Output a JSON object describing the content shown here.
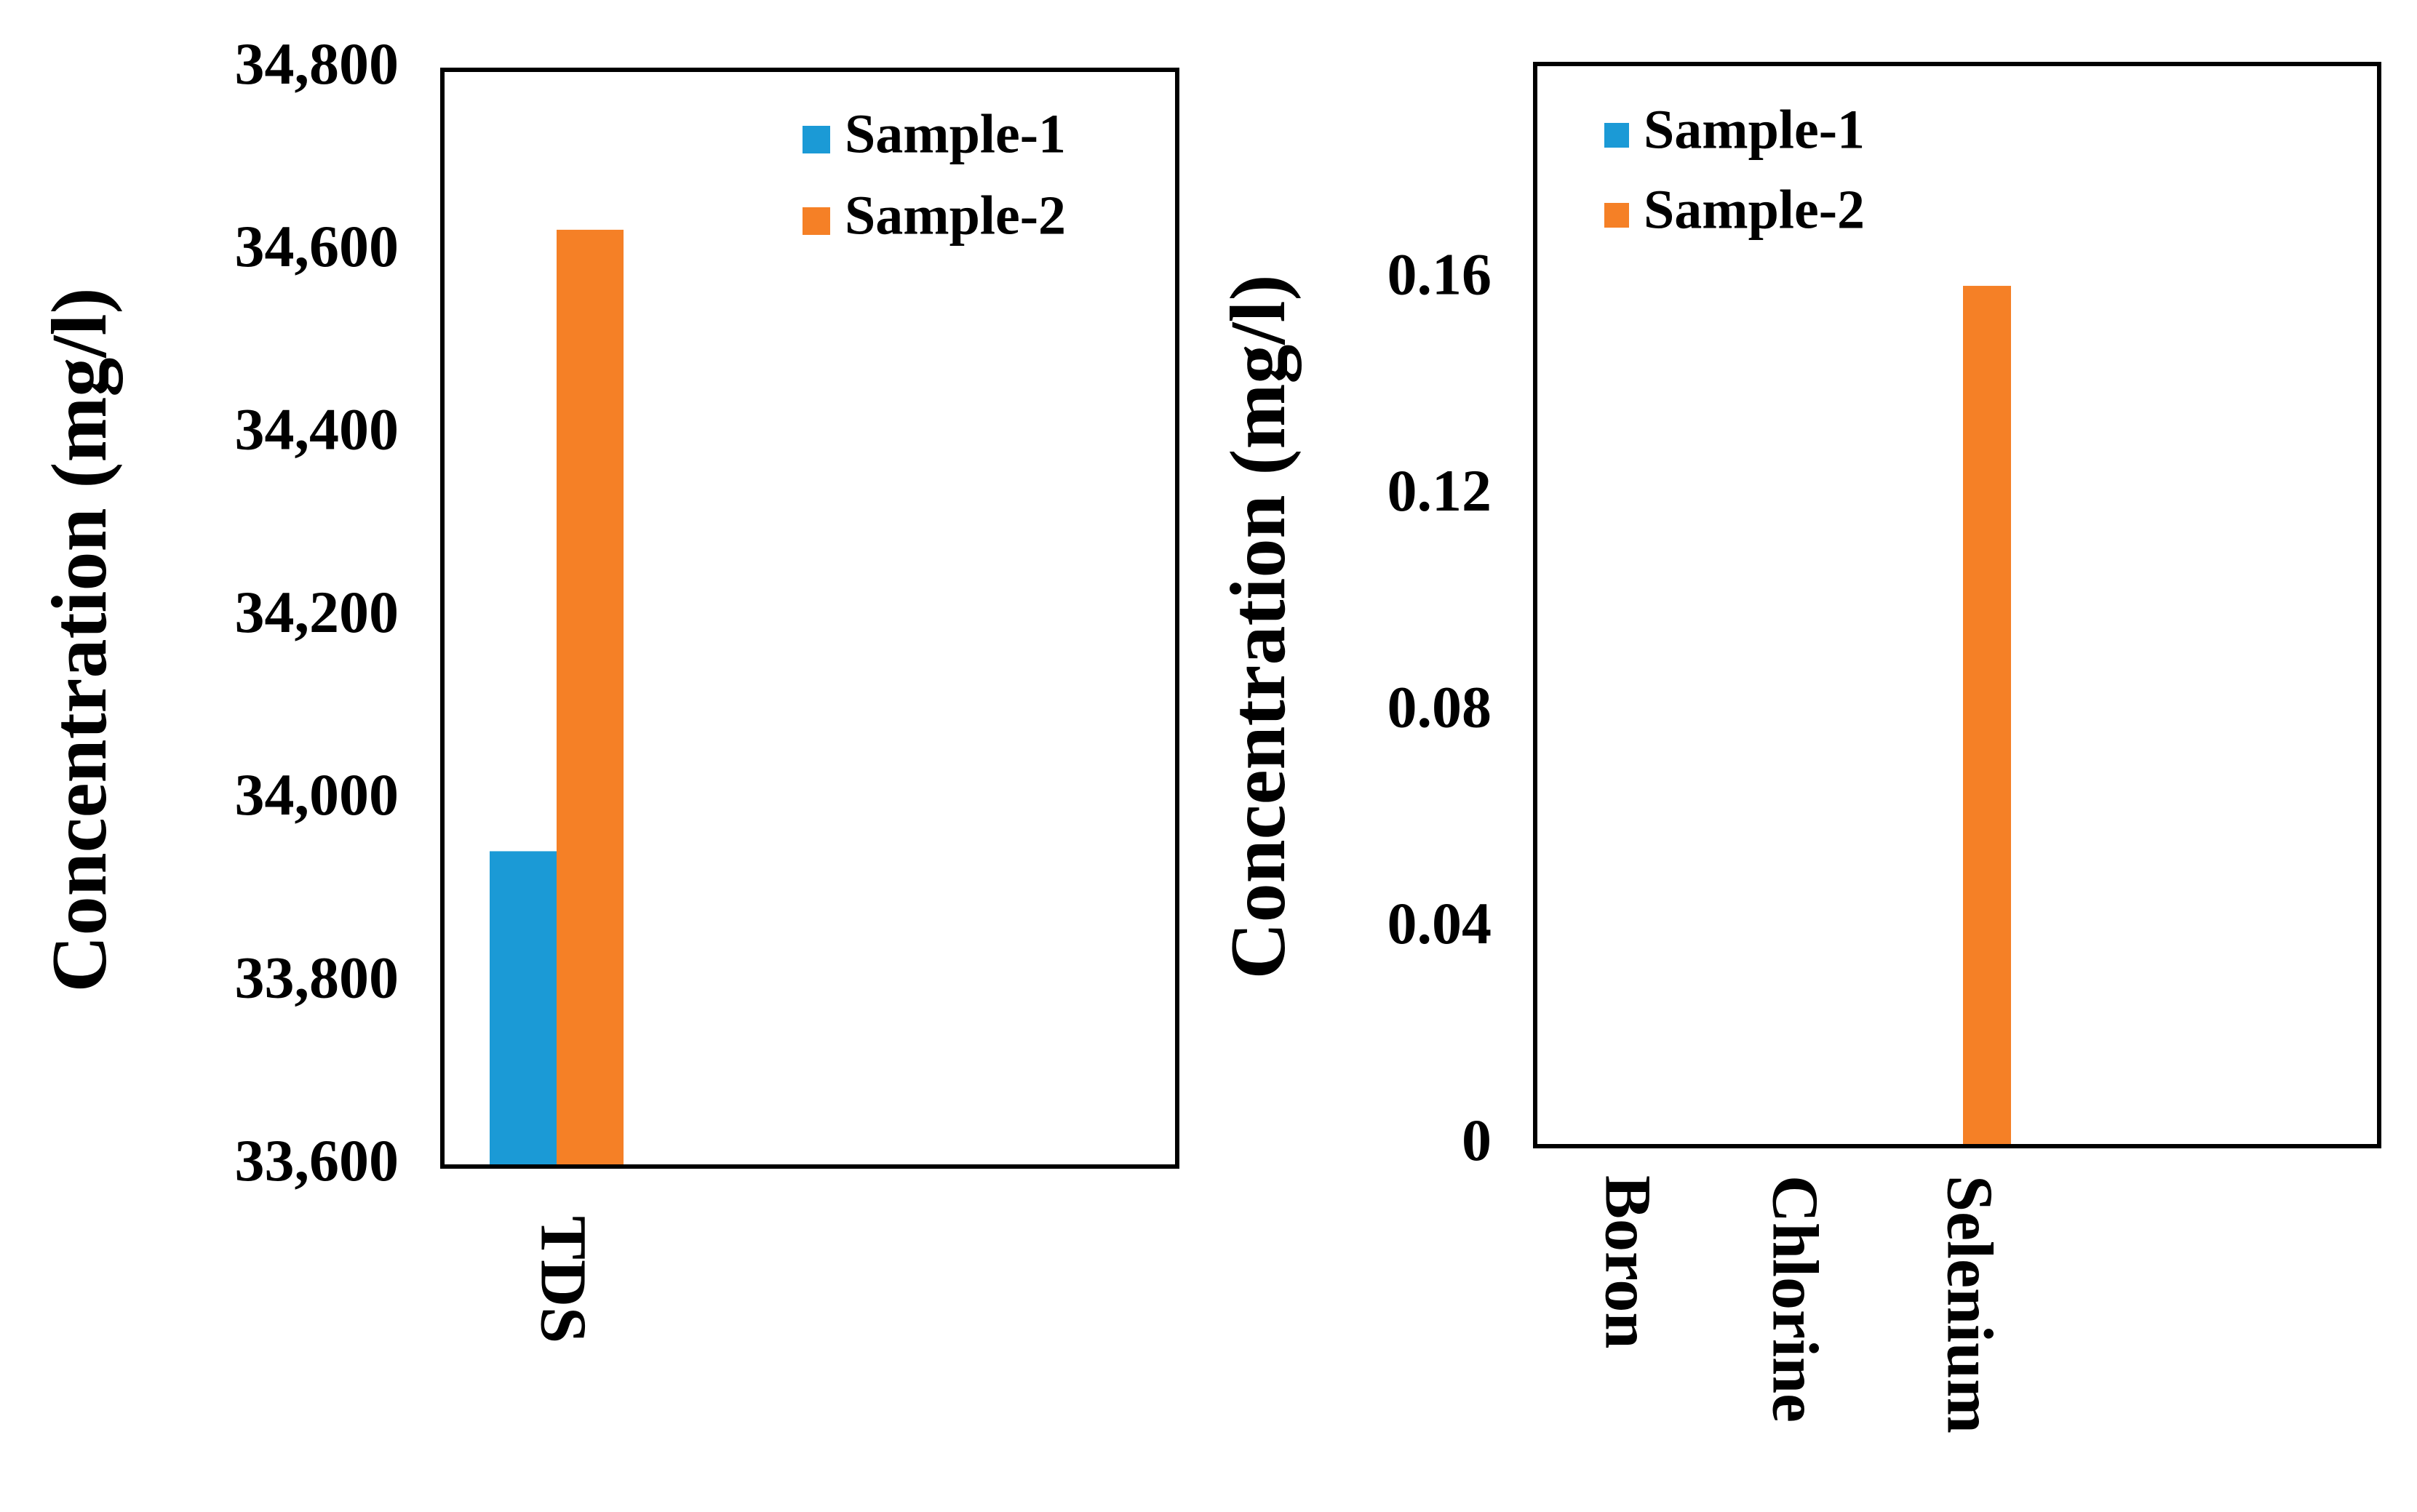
{
  "chart_data": [
    {
      "type": "bar",
      "title": "",
      "xlabel": "",
      "ylabel": "Concentration (mg/l)",
      "categories": [
        "TDS"
      ],
      "ylim": [
        33600,
        34800
      ],
      "yticks": [
        33600,
        33800,
        34000,
        34200,
        34400,
        34600,
        34800
      ],
      "ytick_labels": [
        "33,600",
        "33,800",
        "34,000",
        "34,200",
        "34,400",
        "34,600",
        "34,800"
      ],
      "series": [
        {
          "name": "Sample-1",
          "color": "#1b9ad6",
          "values": [
            33945
          ]
        },
        {
          "name": "Sample-2",
          "color": "#f58026",
          "values": [
            34625
          ]
        }
      ],
      "legend": "top-right",
      "grid": false
    },
    {
      "type": "bar",
      "title": "",
      "xlabel": "",
      "ylabel": "Concentration (mg/l)",
      "categories": [
        "Boron",
        "Chlorine",
        "Selenium"
      ],
      "ylim": [
        0,
        0.2
      ],
      "yticks": [
        0,
        0.04,
        0.08,
        0.12,
        0.16
      ],
      "ytick_labels": [
        "0",
        "0.04",
        "0.08",
        "0.12",
        "0.16"
      ],
      "series": [
        {
          "name": "Sample-1",
          "color": "#1b9ad6",
          "values": [
            0,
            0,
            0
          ]
        },
        {
          "name": "Sample-2",
          "color": "#f58026",
          "values": [
            0,
            0,
            0.159
          ]
        }
      ],
      "legend": "top-left",
      "grid": false
    }
  ]
}
